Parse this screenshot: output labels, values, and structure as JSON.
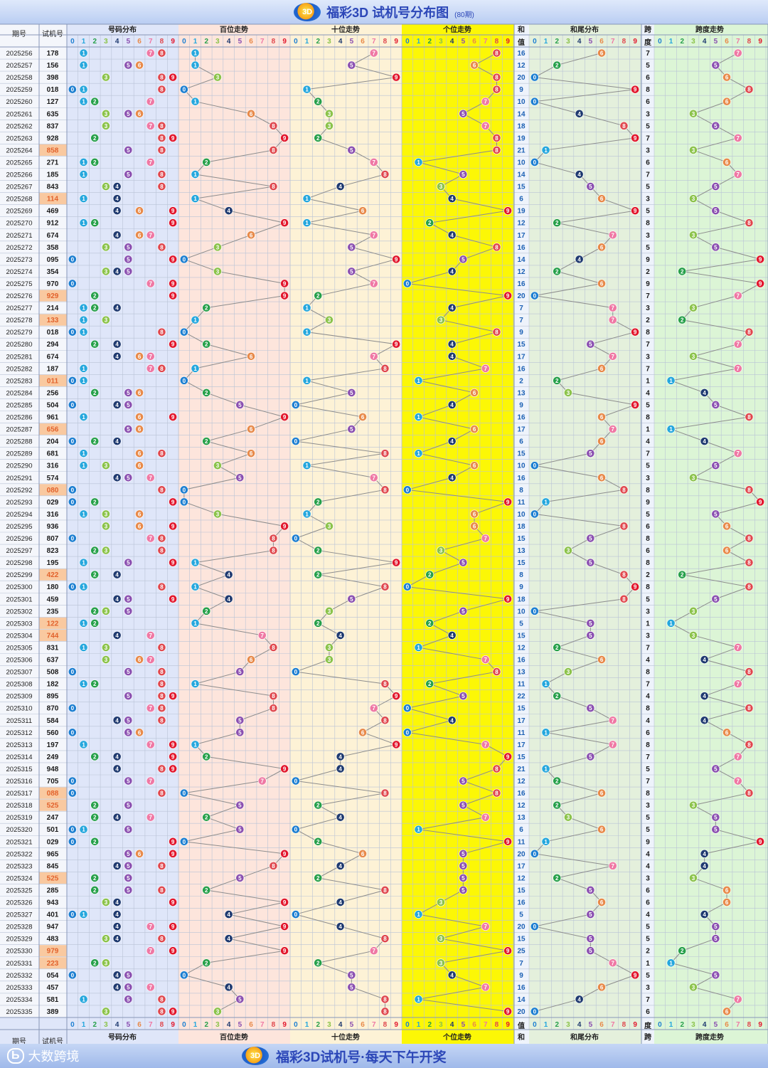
{
  "header": {
    "title": "福彩3D 试机号分布图",
    "subtitle": "(80期)",
    "logo": "3D"
  },
  "footer": {
    "brand": "大数跨境",
    "brand_mark": "Ь",
    "slogan": "福彩3D试机号·每天下午开奖",
    "logo": "3D"
  },
  "columns": {
    "period": "期号",
    "number": "试机号",
    "dist": "号码分布",
    "hundreds": "百位走势",
    "tens": "十位走势",
    "units": "个位走势",
    "sum_top": "和",
    "sum_bottom": "值",
    "sumtail": "和尾分布",
    "span_top": "跨",
    "span_bottom": "度",
    "spantrend": "跨度走势",
    "digits": [
      "0",
      "1",
      "2",
      "3",
      "4",
      "5",
      "6",
      "7",
      "8",
      "9"
    ]
  },
  "colors": {
    "digit": [
      "#1d7fd1",
      "#25a7dd",
      "#26a04a",
      "#8bc34a",
      "#1f3a70",
      "#8a4fb0",
      "#e88a4a",
      "#ef78a4",
      "#e0484e",
      "#e2162c"
    ],
    "dist_bg": "#dfe6f9",
    "hundreds_bg": "#fde5dc",
    "tens_bg": "#fdf2d6",
    "units_bg": "#fcf706",
    "sum_bg": "#eef3fb",
    "sumtail_bg": "#e4f0dc",
    "span_bg": "#dcf5d6",
    "repeat_highlight": "#f9c9a0"
  },
  "chart_data": {
    "type": "table",
    "series": [
      {
        "p": "2025256",
        "n": "178"
      },
      {
        "p": "2025257",
        "n": "156"
      },
      {
        "p": "2025258",
        "n": "398"
      },
      {
        "p": "2025259",
        "n": "018"
      },
      {
        "p": "2025260",
        "n": "127"
      },
      {
        "p": "2025261",
        "n": "635"
      },
      {
        "p": "2025262",
        "n": "837"
      },
      {
        "p": "2025263",
        "n": "928"
      },
      {
        "p": "2025264",
        "n": "858"
      },
      {
        "p": "2025265",
        "n": "271"
      },
      {
        "p": "2025266",
        "n": "185"
      },
      {
        "p": "2025267",
        "n": "843"
      },
      {
        "p": "2025268",
        "n": "114"
      },
      {
        "p": "2025269",
        "n": "469"
      },
      {
        "p": "2025270",
        "n": "912"
      },
      {
        "p": "2025271",
        "n": "674"
      },
      {
        "p": "2025272",
        "n": "358"
      },
      {
        "p": "2025273",
        "n": "095"
      },
      {
        "p": "2025274",
        "n": "354"
      },
      {
        "p": "2025275",
        "n": "970"
      },
      {
        "p": "2025276",
        "n": "929"
      },
      {
        "p": "2025277",
        "n": "214"
      },
      {
        "p": "2025278",
        "n": "133"
      },
      {
        "p": "2025279",
        "n": "018"
      },
      {
        "p": "2025280",
        "n": "294"
      },
      {
        "p": "2025281",
        "n": "674"
      },
      {
        "p": "2025282",
        "n": "187"
      },
      {
        "p": "2025283",
        "n": "011"
      },
      {
        "p": "2025284",
        "n": "256"
      },
      {
        "p": "2025285",
        "n": "504"
      },
      {
        "p": "2025286",
        "n": "961"
      },
      {
        "p": "2025287",
        "n": "656"
      },
      {
        "p": "2025288",
        "n": "204"
      },
      {
        "p": "2025289",
        "n": "681"
      },
      {
        "p": "2025290",
        "n": "316"
      },
      {
        "p": "2025291",
        "n": "574"
      },
      {
        "p": "2025292",
        "n": "080"
      },
      {
        "p": "2025293",
        "n": "029"
      },
      {
        "p": "2025294",
        "n": "316"
      },
      {
        "p": "2025295",
        "n": "936"
      },
      {
        "p": "2025296",
        "n": "807"
      },
      {
        "p": "2025297",
        "n": "823"
      },
      {
        "p": "2025298",
        "n": "195"
      },
      {
        "p": "2025299",
        "n": "422"
      },
      {
        "p": "2025300",
        "n": "180"
      },
      {
        "p": "2025301",
        "n": "459"
      },
      {
        "p": "2025302",
        "n": "235"
      },
      {
        "p": "2025303",
        "n": "122"
      },
      {
        "p": "2025304",
        "n": "744"
      },
      {
        "p": "2025305",
        "n": "831"
      },
      {
        "p": "2025306",
        "n": "637"
      },
      {
        "p": "2025307",
        "n": "508"
      },
      {
        "p": "2025308",
        "n": "182"
      },
      {
        "p": "2025309",
        "n": "895"
      },
      {
        "p": "2025310",
        "n": "870"
      },
      {
        "p": "2025311",
        "n": "584"
      },
      {
        "p": "2025312",
        "n": "560"
      },
      {
        "p": "2025313",
        "n": "197"
      },
      {
        "p": "2025314",
        "n": "249"
      },
      {
        "p": "2025315",
        "n": "948"
      },
      {
        "p": "2025316",
        "n": "705"
      },
      {
        "p": "2025317",
        "n": "088"
      },
      {
        "p": "2025318",
        "n": "525"
      },
      {
        "p": "2025319",
        "n": "247"
      },
      {
        "p": "2025320",
        "n": "501"
      },
      {
        "p": "2025321",
        "n": "029"
      },
      {
        "p": "2025322",
        "n": "965"
      },
      {
        "p": "2025323",
        "n": "845"
      },
      {
        "p": "2025324",
        "n": "525"
      },
      {
        "p": "2025325",
        "n": "285"
      },
      {
        "p": "2025326",
        "n": "943"
      },
      {
        "p": "2025327",
        "n": "401"
      },
      {
        "p": "2025328",
        "n": "947"
      },
      {
        "p": "2025329",
        "n": "483"
      },
      {
        "p": "2025330",
        "n": "979"
      },
      {
        "p": "2025331",
        "n": "223"
      },
      {
        "p": "2025332",
        "n": "054"
      },
      {
        "p": "2025333",
        "n": "457"
      },
      {
        "p": "2025334",
        "n": "581"
      },
      {
        "p": "2025335",
        "n": "389"
      }
    ]
  }
}
